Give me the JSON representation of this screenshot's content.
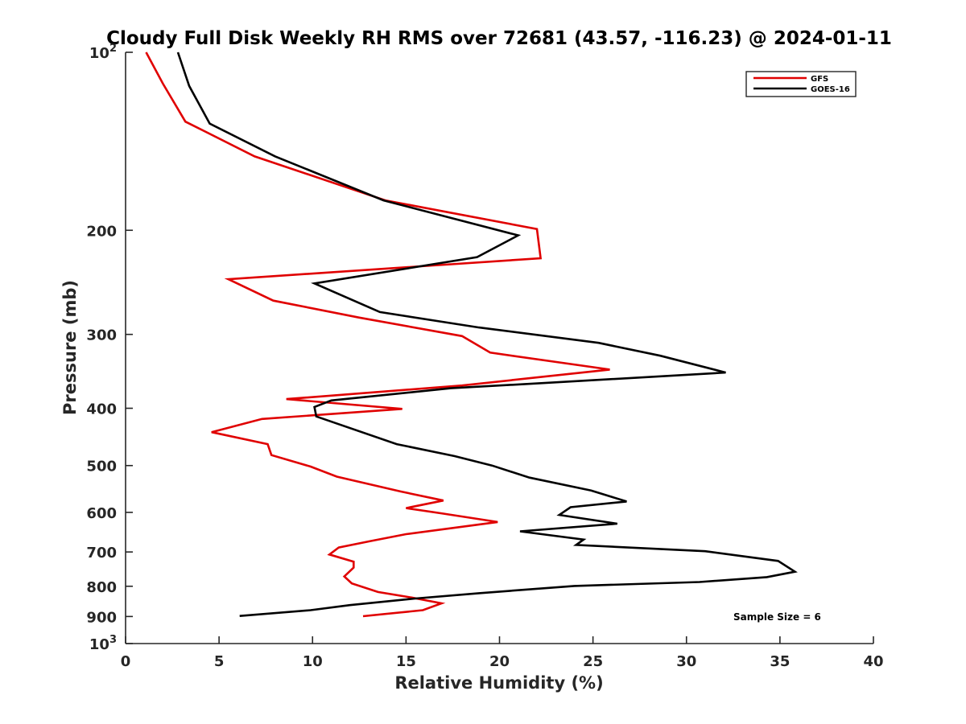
{
  "chart_data": {
    "type": "line",
    "title": "Cloudy Full Disk Weekly RH RMS over 72681 (43.57, -116.23) @ 2024-01-11",
    "xlabel": "Relative Humidity (%)",
    "ylabel": "Pressure (mb)",
    "xlim": [
      0,
      40
    ],
    "ylim": [
      100,
      1000
    ],
    "y_scale": "log",
    "y_reversed": true,
    "grid": false,
    "legend_position": "top-right",
    "x_ticks": [
      0,
      5,
      10,
      15,
      20,
      25,
      30,
      35,
      40
    ],
    "x_tick_labels": [
      "0",
      "5",
      "10",
      "15",
      "20",
      "25",
      "30",
      "35",
      "40"
    ],
    "y_ticks": [
      {
        "value": 100,
        "base": "10",
        "exp": "2"
      },
      {
        "value": 200,
        "label": "200"
      },
      {
        "value": 300,
        "label": "300"
      },
      {
        "value": 400,
        "label": "400"
      },
      {
        "value": 500,
        "label": "500"
      },
      {
        "value": 600,
        "label": "600"
      },
      {
        "value": 700,
        "label": "700"
      },
      {
        "value": 800,
        "label": "800"
      },
      {
        "value": 900,
        "label": "900"
      },
      {
        "value": 1000,
        "base": "10",
        "exp": "3"
      }
    ],
    "annotation": "Sample Size = 6",
    "series": [
      {
        "name": "GFS",
        "color": "#e00000",
        "points": [
          [
            1.1,
            100
          ],
          [
            2.0,
            113
          ],
          [
            3.2,
            131
          ],
          [
            6.9,
            150
          ],
          [
            13.9,
            178
          ],
          [
            22.0,
            199
          ],
          [
            22.2,
            223
          ],
          [
            5.5,
            242
          ],
          [
            7.9,
            263
          ],
          [
            12.5,
            281
          ],
          [
            18.0,
            302
          ],
          [
            19.5,
            322
          ],
          [
            25.9,
            344
          ],
          [
            18.0,
            366
          ],
          [
            8.6,
            386
          ],
          [
            14.8,
            401
          ],
          [
            7.3,
            417
          ],
          [
            4.6,
            439
          ],
          [
            7.6,
            460
          ],
          [
            7.8,
            480
          ],
          [
            9.9,
            502
          ],
          [
            11.3,
            522
          ],
          [
            14.7,
            553
          ],
          [
            17.0,
            573
          ],
          [
            15.0,
            590
          ],
          [
            17.0,
            603
          ],
          [
            19.9,
            623
          ],
          [
            15.0,
            653
          ],
          [
            13.1,
            671
          ],
          [
            11.4,
            688
          ],
          [
            10.9,
            707
          ],
          [
            12.2,
            727
          ],
          [
            12.2,
            744
          ],
          [
            11.7,
            770
          ],
          [
            12.1,
            791
          ],
          [
            13.5,
            818
          ],
          [
            15.3,
            836
          ],
          [
            16.9,
            855
          ],
          [
            15.9,
            878
          ],
          [
            12.7,
            899
          ]
        ]
      },
      {
        "name": "GOES-16",
        "color": "#000000",
        "points": [
          [
            2.8,
            100
          ],
          [
            3.4,
            114
          ],
          [
            4.5,
            132
          ],
          [
            8.0,
            150
          ],
          [
            13.8,
            178
          ],
          [
            21.0,
            204
          ],
          [
            18.8,
            222
          ],
          [
            10.1,
            246
          ],
          [
            13.6,
            275
          ],
          [
            18.9,
            292
          ],
          [
            25.3,
            310
          ],
          [
            28.6,
            326
          ],
          [
            32.1,
            348
          ],
          [
            22.7,
            362
          ],
          [
            17.4,
            370
          ],
          [
            11.0,
            388
          ],
          [
            10.1,
            398
          ],
          [
            10.2,
            413
          ],
          [
            14.5,
            460
          ],
          [
            17.6,
            482
          ],
          [
            19.6,
            500
          ],
          [
            21.6,
            524
          ],
          [
            24.9,
            551
          ],
          [
            26.8,
            575
          ],
          [
            23.8,
            588
          ],
          [
            23.2,
            606
          ],
          [
            26.3,
            627
          ],
          [
            21.1,
            646
          ],
          [
            24.5,
            667
          ],
          [
            24.1,
            681
          ],
          [
            31.0,
            698
          ],
          [
            34.9,
            725
          ],
          [
            35.8,
            756
          ],
          [
            34.3,
            772
          ],
          [
            30.7,
            787
          ],
          [
            24.0,
            799
          ],
          [
            18.9,
            822
          ],
          [
            15.5,
            839
          ],
          [
            12.0,
            861
          ],
          [
            9.9,
            878
          ],
          [
            6.1,
            898
          ]
        ]
      }
    ]
  }
}
